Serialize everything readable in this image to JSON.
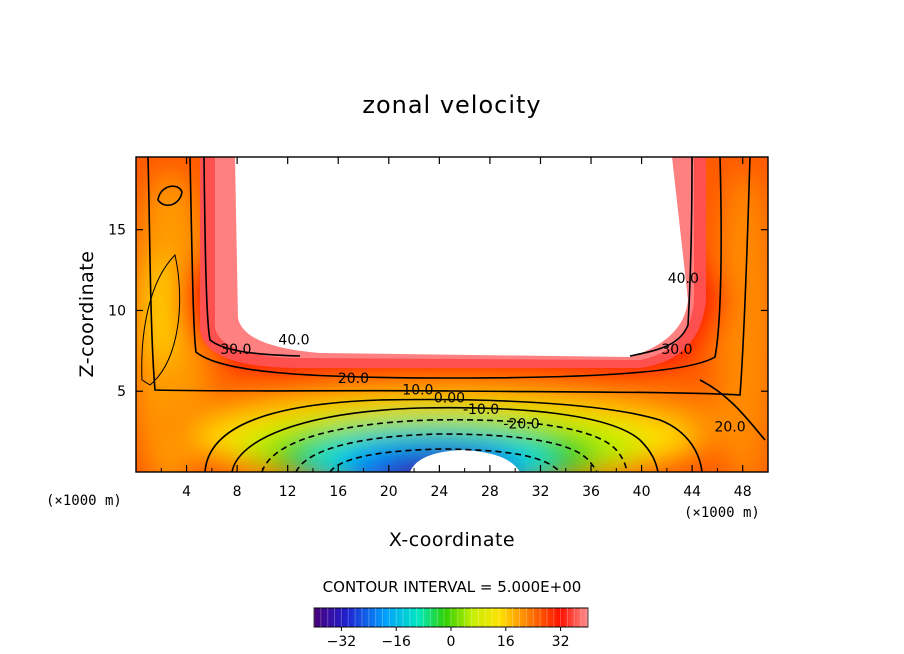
{
  "chart_data": {
    "type": "heatmap",
    "subtype": "filled-contour",
    "title": "zonal velocity",
    "xlabel": "X-coordinate",
    "ylabel": "Z-coordinate",
    "x_unit_left": "(×1000 m)",
    "x_unit_right": "(×1000 m)",
    "xlim": [
      0,
      50
    ],
    "ylim": [
      0,
      19.5
    ],
    "x_ticks": [
      4,
      8,
      12,
      16,
      20,
      24,
      28,
      32,
      36,
      40,
      44,
      48
    ],
    "x_tick_labels": [
      "4",
      "8",
      "12",
      "16",
      "20",
      "24",
      "28",
      "32",
      "36",
      "40",
      "44",
      "48"
    ],
    "y_ticks": [
      5,
      10,
      15
    ],
    "y_tick_labels": [
      "5",
      "10",
      "15"
    ],
    "contour_interval_text": "CONTOUR INTERVAL = 5.000E+00",
    "contour_interval": 5,
    "value_range": [
      -40,
      40
    ],
    "contour_labels": [
      {
        "text": "40.0",
        "x": 12.5,
        "y": 7.9
      },
      {
        "text": "40.0",
        "x": 43.3,
        "y": 11.7
      },
      {
        "text": "30.0",
        "x": 7.9,
        "y": 7.3
      },
      {
        "text": "30.0",
        "x": 42.8,
        "y": 7.3
      },
      {
        "text": "20.0",
        "x": 17.2,
        "y": 5.5
      },
      {
        "text": "20.0",
        "x": 47.0,
        "y": 2.5
      },
      {
        "text": "10.0",
        "x": 22.3,
        "y": 4.8
      },
      {
        "text": "0.00",
        "x": 24.8,
        "y": 4.3
      },
      {
        "text": "-10.0",
        "x": 27.3,
        "y": 3.6
      },
      {
        "text": "-20.0",
        "x": 30.5,
        "y": 2.7
      }
    ],
    "colorbar": {
      "ticks": [
        -32,
        -16,
        0,
        16,
        32
      ],
      "tick_labels": [
        "−32",
        "−16",
        "0",
        "16",
        "32"
      ],
      "range": [
        -40,
        40
      ],
      "colors": [
        "#4a007a",
        "#2020d0",
        "#00a0ff",
        "#00e8c0",
        "#30d000",
        "#c8f000",
        "#ffe000",
        "#ff8000",
        "#ff1000",
        "#ff9090"
      ]
    },
    "undefined_regions": [
      "upper-center-white",
      "bottom-center-white"
    ],
    "grid": false
  }
}
